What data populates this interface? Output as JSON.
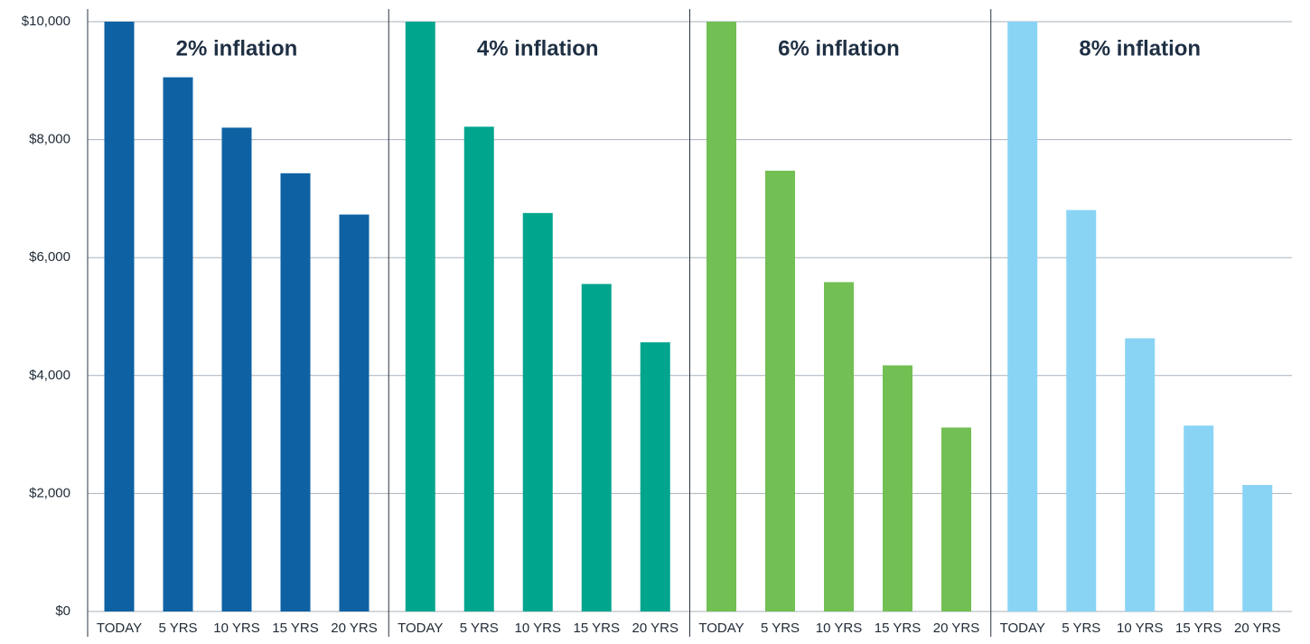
{
  "chart_data": {
    "type": "bar",
    "ylim": [
      0,
      10000
    ],
    "yticks": [
      {
        "value": 0,
        "label": "$0"
      },
      {
        "value": 2000,
        "label": "$2,000"
      },
      {
        "value": 4000,
        "label": "$4,000"
      },
      {
        "value": 6000,
        "label": "$6,000"
      },
      {
        "value": 8000,
        "label": "$8,000"
      },
      {
        "value": 10000,
        "label": "$10,000"
      }
    ],
    "grid": true,
    "panels": [
      {
        "title": "2% inflation",
        "color": "#0e62a3",
        "categories": [
          "TODAY",
          "5 YRS",
          "10 YRS",
          "15 YRS",
          "20 YRS"
        ],
        "values": [
          10000,
          9057,
          8203,
          7430,
          6730
        ]
      },
      {
        "title": "4% inflation",
        "color": "#00a58e",
        "categories": [
          "TODAY",
          "5 YRS",
          "10 YRS",
          "15 YRS",
          "20 YRS"
        ],
        "values": [
          10000,
          8219,
          6756,
          5553,
          4564
        ]
      },
      {
        "title": "6% inflation",
        "color": "#72bf53",
        "categories": [
          "TODAY",
          "5 YRS",
          "10 YRS",
          "15 YRS",
          "20 YRS"
        ],
        "values": [
          10000,
          7473,
          5584,
          4173,
          3118
        ]
      },
      {
        "title": "8% inflation",
        "color": "#89d4f5",
        "categories": [
          "TODAY",
          "5 YRS",
          "10 YRS",
          "15 YRS",
          "20 YRS"
        ],
        "values": [
          10000,
          6806,
          4632,
          3152,
          2145
        ]
      }
    ]
  }
}
